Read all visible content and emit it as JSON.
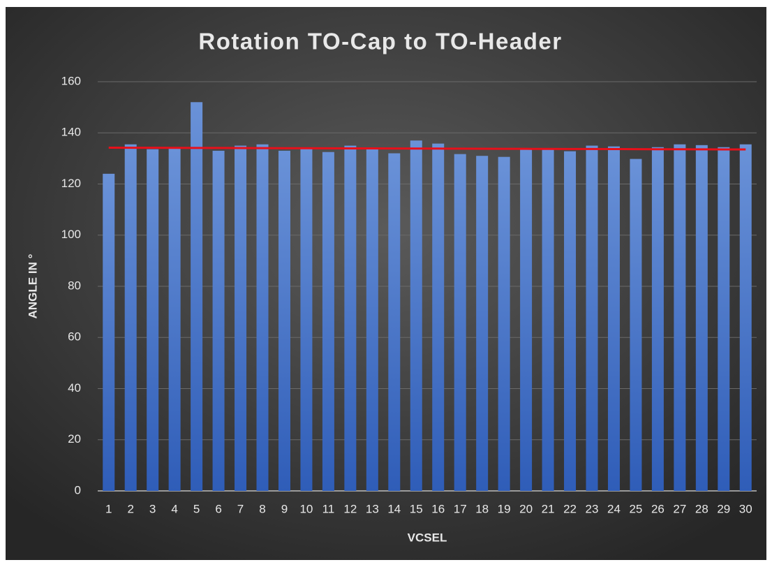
{
  "chart_data": {
    "type": "bar",
    "title": "Rotation TO-Cap to TO-Header",
    "x_label": "VCSEL",
    "y_label": "ANGLE IN °",
    "categories": [
      "1",
      "2",
      "3",
      "4",
      "5",
      "6",
      "7",
      "8",
      "9",
      "10",
      "11",
      "12",
      "13",
      "14",
      "15",
      "16",
      "17",
      "18",
      "19",
      "20",
      "21",
      "22",
      "23",
      "24",
      "25",
      "26",
      "27",
      "28",
      "29",
      "30"
    ],
    "series": [
      {
        "color": "#4a78cc",
        "values": [
          124,
          135.5,
          133.6,
          134,
          152,
          133,
          135,
          135.5,
          133,
          134,
          132.5,
          135,
          134,
          132,
          137,
          135.8,
          131.7,
          131,
          130.6,
          134,
          134,
          132.8,
          135,
          134.7,
          129.8,
          134.4,
          135.5,
          135.2,
          134.4,
          135.5
        ]
      },
      {
        "type": "line",
        "color": "#e8101a",
        "values": [
          134.2,
          134.18,
          134.15,
          134.13,
          134.1,
          134.08,
          134.06,
          134.03,
          134.01,
          133.98,
          133.96,
          133.94,
          133.91,
          133.89,
          133.86,
          133.84,
          133.82,
          133.79,
          133.77,
          133.74,
          133.72,
          133.7,
          133.67,
          133.65,
          133.62,
          133.6,
          133.58,
          133.55,
          133.53,
          133.5
        ]
      }
    ],
    "ylim": [
      0,
      160
    ],
    "yticks": [
      0,
      20,
      40,
      60,
      80,
      100,
      120,
      140,
      160
    ],
    "grid": true
  }
}
